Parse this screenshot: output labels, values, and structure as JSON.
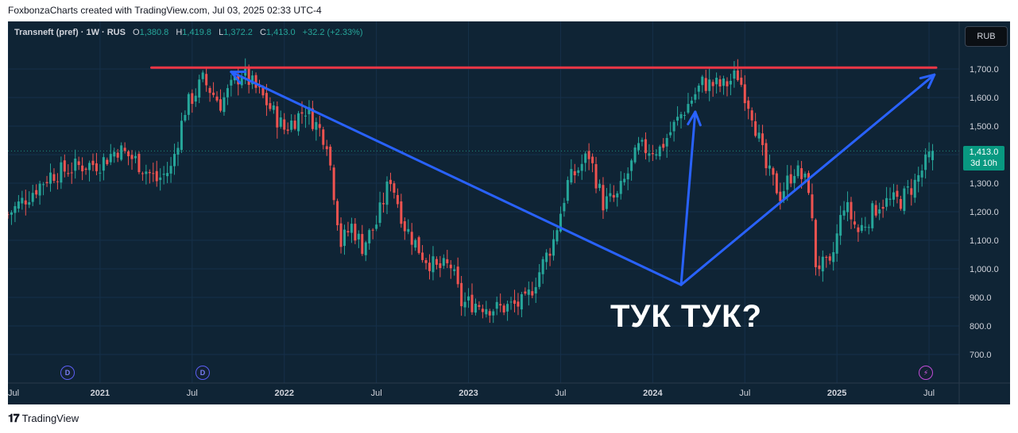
{
  "header": {
    "credit": "FoxbonzaCharts created with TradingView.com, Jul 03, 2025 02:33 UTC-4"
  },
  "legend": {
    "symbol": "Transneft (pref) · 1W · RUS",
    "o_label": "O",
    "o_value": "1,380.8",
    "h_label": "H",
    "h_value": "1,419.8",
    "l_label": "L",
    "l_value": "1,372.2",
    "c_label": "C",
    "c_value": "1,413.0",
    "change": "+32.2 (+2.33%)"
  },
  "currency_button": "RUB",
  "price_badge": {
    "price": "1,413.0",
    "countdown": "3d 10h"
  },
  "annotation": "ТУК ТУК?",
  "markers": {
    "d1": "D",
    "d2": "D",
    "bolt": "⚡"
  },
  "footer": {
    "brand": "TradingView",
    "logo_icon": "tv-logo-icon"
  },
  "colors": {
    "up": "#26a69a",
    "down": "#ef5350",
    "bg": "#0f2435",
    "resistance": "#f23645",
    "trend": "#2962ff"
  },
  "chart_data": {
    "type": "candlestick",
    "title": "Transneft (pref) · 1W · RUS",
    "ylim": [
      650,
      1800
    ],
    "y_ticks": [
      "1,700.0",
      "1,600.0",
      "1,500.0",
      "1,400.0",
      "1,300.0",
      "1,200.0",
      "1,100.0",
      "1,000.0",
      "900.0",
      "800.0",
      "700.0"
    ],
    "y_tick_values": [
      1700,
      1600,
      1500,
      1400,
      1300,
      1200,
      1100,
      1000,
      900,
      800,
      700
    ],
    "x_ticks": [
      {
        "label": "Jul",
        "t": 0
      },
      {
        "label": "2021",
        "t": 26,
        "year": true
      },
      {
        "label": "Jul",
        "t": 52
      },
      {
        "label": "2022",
        "t": 78,
        "year": true
      },
      {
        "label": "Jul",
        "t": 104
      },
      {
        "label": "2023",
        "t": 130,
        "year": true
      },
      {
        "label": "Jul",
        "t": 156
      },
      {
        "label": "2024",
        "t": 182,
        "year": true
      },
      {
        "label": "Jul",
        "t": 208
      },
      {
        "label": "2025",
        "t": 234,
        "year": true
      },
      {
        "label": "Jul",
        "t": 260
      }
    ],
    "anchors": [
      [
        0,
        1190
      ],
      [
        6,
        1260
      ],
      [
        12,
        1330
      ],
      [
        20,
        1360
      ],
      [
        26,
        1370
      ],
      [
        31,
        1420
      ],
      [
        36,
        1380
      ],
      [
        42,
        1310
      ],
      [
        46,
        1350
      ],
      [
        50,
        1560
      ],
      [
        55,
        1660
      ],
      [
        60,
        1580
      ],
      [
        66,
        1690
      ],
      [
        72,
        1600
      ],
      [
        78,
        1490
      ],
      [
        84,
        1560
      ],
      [
        90,
        1450
      ],
      [
        94,
        1090
      ],
      [
        97,
        1150
      ],
      [
        100,
        1080
      ],
      [
        104,
        1160
      ],
      [
        108,
        1320
      ],
      [
        112,
        1150
      ],
      [
        117,
        1050
      ],
      [
        121,
        1000
      ],
      [
        125,
        1010
      ],
      [
        128,
        880
      ],
      [
        132,
        880
      ],
      [
        138,
        860
      ],
      [
        146,
        880
      ],
      [
        154,
        1100
      ],
      [
        158,
        1300
      ],
      [
        164,
        1400
      ],
      [
        168,
        1230
      ],
      [
        172,
        1250
      ],
      [
        178,
        1420
      ],
      [
        184,
        1420
      ],
      [
        190,
        1540
      ],
      [
        196,
        1650
      ],
      [
        202,
        1640
      ],
      [
        206,
        1680
      ],
      [
        210,
        1550
      ],
      [
        214,
        1350
      ],
      [
        218,
        1260
      ],
      [
        222,
        1350
      ],
      [
        226,
        1290
      ],
      [
        228,
        1020
      ],
      [
        232,
        1000
      ],
      [
        236,
        1230
      ],
      [
        240,
        1130
      ],
      [
        246,
        1230
      ],
      [
        252,
        1240
      ],
      [
        256,
        1300
      ],
      [
        261,
        1413
      ]
    ],
    "last_close": 1413.0,
    "resistance": {
      "y": 1705,
      "t_start": 40.5,
      "t_end": 262
    },
    "trend_lines": [
      {
        "from": [
          63,
          1690
        ],
        "to": [
          190,
          944
        ]
      },
      {
        "from": [
          190,
          944
        ],
        "to": [
          261.5,
          1680
        ]
      },
      {
        "from": [
          190,
          944
        ],
        "to": [
          194,
          1550
        ]
      }
    ]
  }
}
